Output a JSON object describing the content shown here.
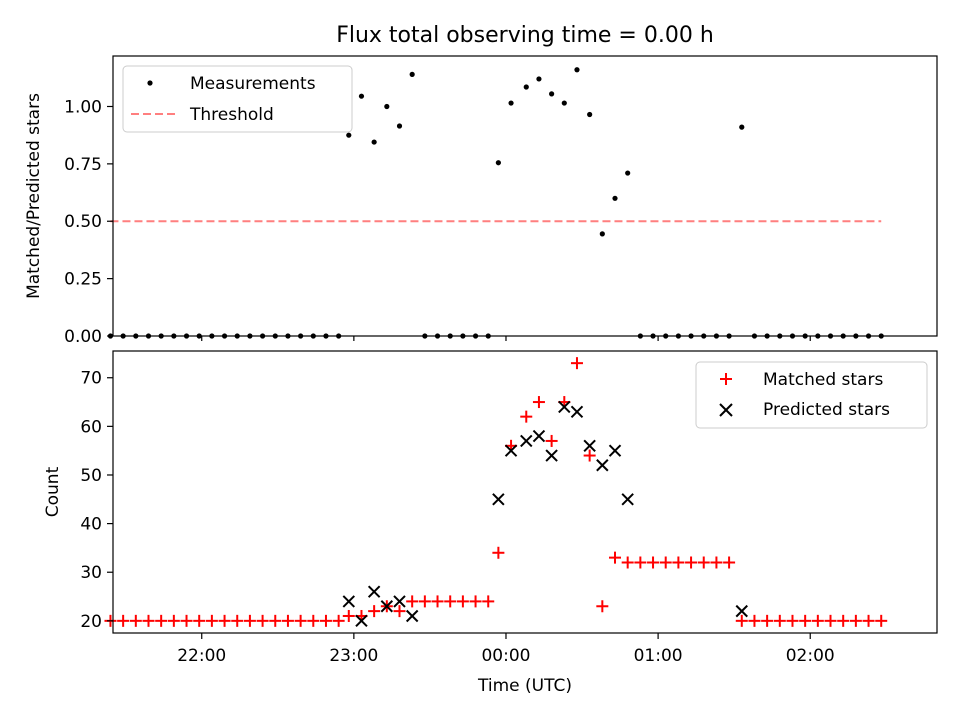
{
  "chart_data": [
    {
      "type": "scatter",
      "title": "Flux total observing time = 0.00 h",
      "xlabel": "",
      "ylabel": "Matched/Predicted stars",
      "x_range": [
        "21:25",
        "02:50"
      ],
      "ylim": [
        0,
        1.22
      ],
      "yticks": [
        0,
        0.25,
        0.5,
        0.75,
        1.0
      ],
      "ytick_labels": [
        "0.00",
        "0.25",
        "0.50",
        "0.75",
        "1.00"
      ],
      "legend_position": "upper left",
      "series": [
        {
          "name": "Measurements",
          "marker": "dot",
          "color": "#000000",
          "points": [
            [
              "21:24",
              0
            ],
            [
              "21:29",
              0
            ],
            [
              "21:34",
              0
            ],
            [
              "21:39",
              0
            ],
            [
              "21:44",
              0
            ],
            [
              "21:49",
              0
            ],
            [
              "21:54",
              0
            ],
            [
              "21:59",
              0
            ],
            [
              "22:04",
              0
            ],
            [
              "22:09",
              0
            ],
            [
              "22:14",
              0
            ],
            [
              "22:19",
              0
            ],
            [
              "22:24",
              0
            ],
            [
              "22:29",
              0
            ],
            [
              "22:34",
              0
            ],
            [
              "22:39",
              0
            ],
            [
              "22:44",
              0
            ],
            [
              "22:49",
              0
            ],
            [
              "22:54",
              0
            ],
            [
              "22:58",
              0.875
            ],
            [
              "23:03",
              1.045
            ],
            [
              "23:08",
              0.845
            ],
            [
              "23:13",
              1.0
            ],
            [
              "23:18",
              0.915
            ],
            [
              "23:23",
              1.14
            ],
            [
              "23:28",
              0
            ],
            [
              "23:33",
              0
            ],
            [
              "23:38",
              0
            ],
            [
              "23:43",
              0
            ],
            [
              "23:48",
              0
            ],
            [
              "23:53",
              0
            ],
            [
              "23:57",
              0.755
            ],
            [
              "00:02",
              1.015
            ],
            [
              "00:08",
              1.085
            ],
            [
              "00:13",
              1.12
            ],
            [
              "00:18",
              1.055
            ],
            [
              "00:23",
              1.015
            ],
            [
              "00:28",
              1.16
            ],
            [
              "00:33",
              0.965
            ],
            [
              "00:38",
              0.445
            ],
            [
              "00:43",
              0.6
            ],
            [
              "00:48",
              0.71
            ],
            [
              "00:53",
              0
            ],
            [
              "00:58",
              0
            ],
            [
              "01:03",
              0
            ],
            [
              "01:08",
              0
            ],
            [
              "01:13",
              0
            ],
            [
              "01:18",
              0
            ],
            [
              "01:23",
              0
            ],
            [
              "01:28",
              0
            ],
            [
              "01:33",
              0.91
            ],
            [
              "01:38",
              0
            ],
            [
              "01:43",
              0
            ],
            [
              "01:48",
              0
            ],
            [
              "01:53",
              0
            ],
            [
              "01:58",
              0
            ],
            [
              "02:03",
              0
            ],
            [
              "02:08",
              0
            ],
            [
              "02:13",
              0
            ],
            [
              "02:18",
              0
            ],
            [
              "02:23",
              0
            ],
            [
              "02:28",
              0
            ]
          ]
        },
        {
          "name": "Threshold",
          "style": "dashed",
          "color": "#ff7f7f",
          "points": [
            [
              "21:24",
              0.5
            ],
            [
              "02:28",
              0.5
            ]
          ]
        }
      ]
    },
    {
      "type": "scatter",
      "title": "",
      "xlabel": "Time (UTC)",
      "ylabel": "Count",
      "x_range": [
        "21:25",
        "02:50"
      ],
      "ylim": [
        17.5,
        75.5
      ],
      "yticks": [
        20,
        30,
        40,
        50,
        60,
        70
      ],
      "ytick_labels": [
        "20",
        "30",
        "40",
        "50",
        "60",
        "70"
      ],
      "xticks": [
        "22:00",
        "23:00",
        "00:00",
        "01:00",
        "02:00"
      ],
      "xtick_labels": [
        "22:00",
        "23:00",
        "00:00",
        "01:00",
        "02:00"
      ],
      "legend_position": "upper right",
      "series": [
        {
          "name": "Matched stars",
          "marker": "plus",
          "color": "#ff0000",
          "points": [
            [
              "21:24",
              20
            ],
            [
              "21:29",
              20
            ],
            [
              "21:34",
              20
            ],
            [
              "21:39",
              20
            ],
            [
              "21:44",
              20
            ],
            [
              "21:49",
              20
            ],
            [
              "21:54",
              20
            ],
            [
              "21:59",
              20
            ],
            [
              "22:04",
              20
            ],
            [
              "22:09",
              20
            ],
            [
              "22:14",
              20
            ],
            [
              "22:19",
              20
            ],
            [
              "22:24",
              20
            ],
            [
              "22:29",
              20
            ],
            [
              "22:34",
              20
            ],
            [
              "22:39",
              20
            ],
            [
              "22:44",
              20
            ],
            [
              "22:49",
              20
            ],
            [
              "22:54",
              20
            ],
            [
              "22:58",
              21
            ],
            [
              "23:03",
              21
            ],
            [
              "23:08",
              22
            ],
            [
              "23:13",
              23
            ],
            [
              "23:18",
              22
            ],
            [
              "23:23",
              24
            ],
            [
              "23:28",
              24
            ],
            [
              "23:33",
              24
            ],
            [
              "23:38",
              24
            ],
            [
              "23:43",
              24
            ],
            [
              "23:48",
              24
            ],
            [
              "23:53",
              24
            ],
            [
              "23:57",
              34
            ],
            [
              "00:02",
              56
            ],
            [
              "00:08",
              62
            ],
            [
              "00:13",
              65
            ],
            [
              "00:18",
              57
            ],
            [
              "00:23",
              65
            ],
            [
              "00:28",
              73
            ],
            [
              "00:33",
              54
            ],
            [
              "00:38",
              23
            ],
            [
              "00:43",
              33
            ],
            [
              "00:48",
              32
            ],
            [
              "00:53",
              32
            ],
            [
              "00:58",
              32
            ],
            [
              "01:03",
              32
            ],
            [
              "01:08",
              32
            ],
            [
              "01:13",
              32
            ],
            [
              "01:18",
              32
            ],
            [
              "01:23",
              32
            ],
            [
              "01:28",
              32
            ],
            [
              "01:33",
              20
            ],
            [
              "01:38",
              20
            ],
            [
              "01:43",
              20
            ],
            [
              "01:48",
              20
            ],
            [
              "01:53",
              20
            ],
            [
              "01:58",
              20
            ],
            [
              "02:03",
              20
            ],
            [
              "02:08",
              20
            ],
            [
              "02:13",
              20
            ],
            [
              "02:18",
              20
            ],
            [
              "02:23",
              20
            ],
            [
              "02:28",
              20
            ]
          ]
        },
        {
          "name": "Predicted stars",
          "marker": "x",
          "color": "#000000",
          "points": [
            [
              "22:58",
              24
            ],
            [
              "23:03",
              20
            ],
            [
              "23:08",
              26
            ],
            [
              "23:13",
              23
            ],
            [
              "23:18",
              24
            ],
            [
              "23:23",
              21
            ],
            [
              "23:57",
              45
            ],
            [
              "00:02",
              55
            ],
            [
              "00:08",
              57
            ],
            [
              "00:13",
              58
            ],
            [
              "00:18",
              54
            ],
            [
              "00:23",
              64
            ],
            [
              "00:28",
              63
            ],
            [
              "00:33",
              56
            ],
            [
              "00:38",
              52
            ],
            [
              "00:43",
              55
            ],
            [
              "00:48",
              45
            ],
            [
              "01:33",
              22
            ]
          ]
        }
      ]
    }
  ]
}
